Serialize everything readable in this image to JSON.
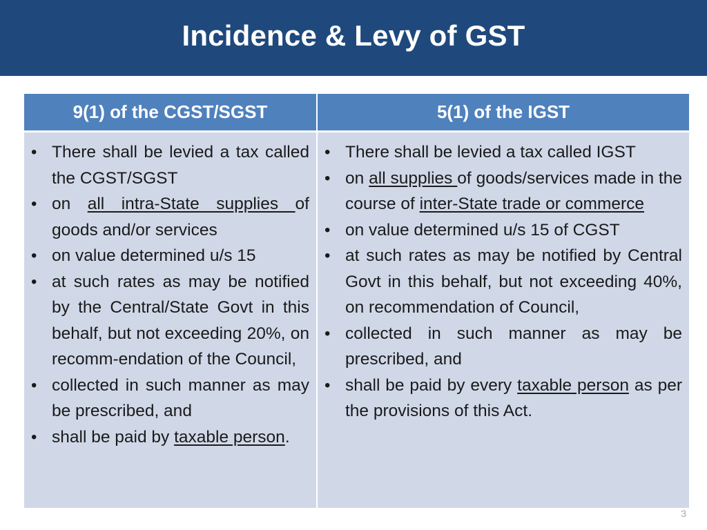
{
  "title": "Incidence & Levy of GST",
  "columns": [
    {
      "header": "9(1) of the CGST/SGST",
      "bullets": [
        [
          {
            "t": "There shall be levied a tax called the CGST/SGST"
          }
        ],
        [
          {
            "t": "on "
          },
          {
            "t": "all intra-State supplies ",
            "u": true
          },
          {
            "t": "of goods and/or services"
          }
        ],
        [
          {
            "t": "on value determined u/s 15"
          }
        ],
        [
          {
            "t": "at such rates as may be notified by the Central/State Govt in this behalf, but not exceeding 20%, on recomm-endation of the Council,"
          }
        ],
        [
          {
            "t": "collected in such manner as may be prescribed, and"
          }
        ],
        [
          {
            "t": "shall be paid by "
          },
          {
            "t": "taxable person",
            "u": true
          },
          {
            "t": "."
          }
        ]
      ]
    },
    {
      "header": "5(1) of the IGST",
      "bullets": [
        [
          {
            "t": "There shall be levied a tax called IGST"
          }
        ],
        [
          {
            "t": "on "
          },
          {
            "t": "all supplies ",
            "u": true
          },
          {
            "t": "of goods/services made in the course of "
          },
          {
            "t": "inter-State trade or commerce",
            "u": true
          }
        ],
        [
          {
            "t": "on value determined u/s 15 of CGST"
          }
        ],
        [
          {
            "t": "at such rates as may be notified by Central Govt in this behalf, but not exceeding 40%, on recommendation of Council,"
          }
        ],
        [
          {
            "t": "collected in such manner as may be prescribed, and"
          }
        ],
        [
          {
            "t": "shall be paid by every "
          },
          {
            "t": "taxable person",
            "u": true
          },
          {
            "t": " as per the provisions of this Act."
          }
        ]
      ]
    }
  ],
  "page_number": "3",
  "colors": {
    "title_bar": "#1f497d",
    "header_fill": "#4f81bd",
    "body_fill": "#d0d8e8"
  }
}
